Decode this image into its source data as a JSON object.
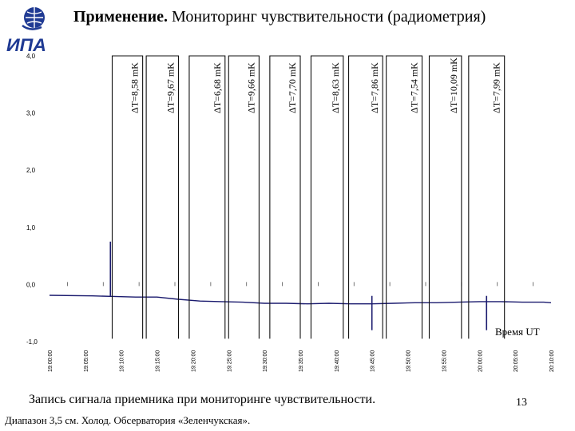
{
  "header": {
    "title_bold": "Применение.",
    "title_rest": " Мониторинг чувствительности (радиометрия)"
  },
  "logo": {
    "icon": "ipa-institute-logo",
    "text": "ИПА",
    "color": "#1f3a93"
  },
  "footer": {
    "caption": "Запись сигнала приемника при мониторинге чувствительности.",
    "subcaption": "Диапазон 3,5 см. Холод. Обсерватория «Зеленчукская».",
    "page_number": "13"
  },
  "chart_data": {
    "type": "line",
    "title": "",
    "xlabel": "Время UT",
    "ylabel": "",
    "ylim": [
      -1.0,
      4.0
    ],
    "xlim": [
      "19:00:00",
      "20:10:00"
    ],
    "y_ticks": [
      "4,0",
      "3,0",
      "2,0",
      "1,0",
      "0,0",
      "-1,0"
    ],
    "x_ticks": [
      "19:00:00",
      "19:05:00",
      "19:10:00",
      "19:15:00",
      "19:20:00",
      "19:25:00",
      "19:30:00",
      "19:35:00",
      "19:40:00",
      "19:45:00",
      "19:50:00",
      "19:55:00",
      "20:00:00",
      "20:05:00",
      "20:10:00"
    ],
    "line_color": "#1a1a6e",
    "series": [
      {
        "x": [
          "19:00:00",
          "19:06:00",
          "19:09:00",
          "19:12:00",
          "19:15:00",
          "19:18:00",
          "19:21:00",
          "19:24:00",
          "19:27:00",
          "19:30:00",
          "19:33:00",
          "19:36:00",
          "19:39:00",
          "19:42:00",
          "19:45:00",
          "19:48:00",
          "19:51:00",
          "19:54:00",
          "19:57:00",
          "20:00:00",
          "20:03:00",
          "20:06:00",
          "20:09:00",
          "20:10:00"
        ],
        "y": [
          -0.19,
          -0.2,
          -0.21,
          -0.22,
          -0.22,
          -0.26,
          -0.29,
          -0.3,
          -0.31,
          -0.33,
          -0.33,
          -0.34,
          -0.33,
          -0.34,
          -0.34,
          -0.33,
          -0.32,
          -0.32,
          -0.31,
          -0.3,
          -0.3,
          -0.31,
          -0.31,
          -0.32
        ]
      }
    ],
    "pulses": [
      {
        "label": "ΔT=8,58 mK",
        "x_start": "19:08:45",
        "x_end": "19:13:00",
        "y_top": 4.0,
        "y_bottom": -0.95
      },
      {
        "label": "ΔT=9,67 mK",
        "x_start": "19:13:30",
        "x_end": "19:18:00",
        "y_top": 4.0,
        "y_bottom": -0.95
      },
      {
        "label": "ΔT=6,68 mK",
        "x_start": "19:19:30",
        "x_end": "19:24:30",
        "y_top": 4.0,
        "y_bottom": -0.95
      },
      {
        "label": "ΔT=9,66 mK",
        "x_start": "19:25:00",
        "x_end": "19:29:15",
        "y_top": 4.0,
        "y_bottom": -0.95
      },
      {
        "label": "ΔT=7,70 mK",
        "x_start": "19:30:45",
        "x_end": "19:35:00",
        "y_top": 4.0,
        "y_bottom": -0.95
      },
      {
        "label": "ΔT=8,63 mK",
        "x_start": "19:36:30",
        "x_end": "19:41:00",
        "y_top": 4.0,
        "y_bottom": -0.95
      },
      {
        "label": "ΔT=7,86 mK",
        "x_start": "19:41:45",
        "x_end": "19:46:30",
        "y_top": 4.0,
        "y_bottom": -0.95
      },
      {
        "label": "ΔT=7,54 mK",
        "x_start": "19:47:00",
        "x_end": "19:52:00",
        "y_top": 4.0,
        "y_bottom": -0.95
      },
      {
        "label": "ΔT=10,09 mK",
        "x_start": "19:53:00",
        "x_end": "19:57:30",
        "y_top": 4.0,
        "y_bottom": -0.95
      },
      {
        "label": "ΔT=7,99 mK",
        "x_start": "19:58:30",
        "x_end": "20:03:30",
        "y_top": 4.0,
        "y_bottom": -0.95
      }
    ],
    "spikes": [
      {
        "x": "19:08:30",
        "y": 0.75
      },
      {
        "x": "19:45:00",
        "y": -0.8
      },
      {
        "x": "20:01:00",
        "y": -0.8
      }
    ]
  }
}
